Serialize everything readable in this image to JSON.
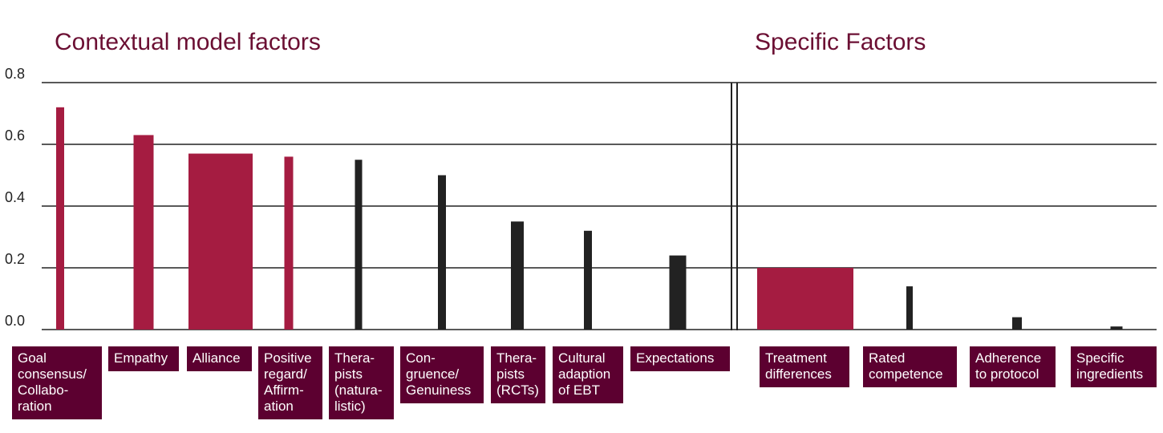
{
  "chart_data": [
    {
      "type": "bar",
      "title": "Contextual model factors",
      "categories": [
        "Goal\nconsensus/\nCollabo-\nration",
        "Empathy",
        "Alliance",
        "Positive\nregard/\nAffirm-\nation",
        "Thera-\npists\n(natura-\nlistic)",
        "Con-\ngruence/\nGenuiness",
        "Thera-\npists\n(RCTs)",
        "Cultural\nadaption\nof EBT",
        "Expectations"
      ],
      "values": [
        0.72,
        0.63,
        0.57,
        0.56,
        0.55,
        0.5,
        0.35,
        0.32,
        0.24
      ],
      "colors": [
        "#a51c41",
        "#a51c41",
        "#a51c41",
        "#a51c41",
        "#222222",
        "#222222",
        "#222222",
        "#222222",
        "#222222"
      ],
      "ylim": [
        0,
        0.8
      ],
      "yticks": [
        {
          "value": 0,
          "label": "0.0"
        },
        0.2,
        0.4,
        0.6,
        0.8
      ],
      "grid": true
    },
    {
      "type": "bar",
      "title": "Specific Factors",
      "categories": [
        "Treatment\ndifferences",
        "Rated\ncompetence",
        "Adherence\nto protocol",
        "Specific\ningredients"
      ],
      "values": [
        0.2,
        0.14,
        0.04,
        0.01
      ],
      "colors": [
        "#a51c41",
        "#222222",
        "#222222",
        "#222222"
      ],
      "ylim": [
        0,
        0.8
      ]
    }
  ]
}
